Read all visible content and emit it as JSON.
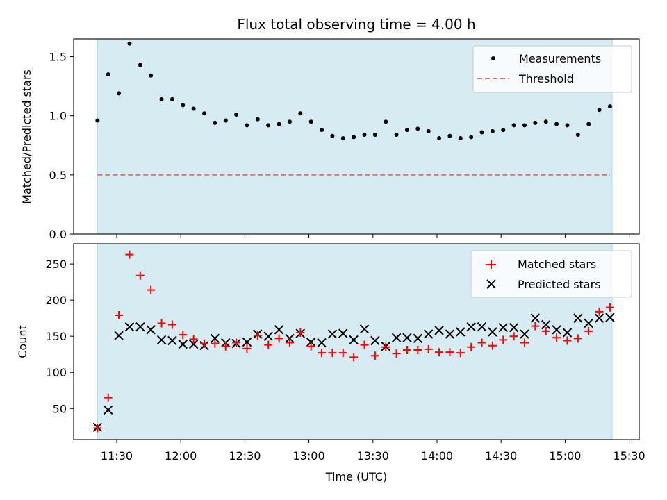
{
  "chart_data": [
    {
      "type": "scatter",
      "title": "Flux total observing time = 4.00 h",
      "xlabel": "",
      "ylabel": "Matched/Predicted stars",
      "ylim": [
        0,
        1.65
      ],
      "yticks": [
        "0.0",
        "0.5",
        "1.0",
        "1.5"
      ],
      "shaded_span": [
        "11:21",
        "15:22"
      ],
      "grid": false,
      "legend": "top-right",
      "series": [
        {
          "name": "Measurements",
          "kind": "dot",
          "color": "#000000",
          "x": [
            "11:21",
            "11:26",
            "11:31",
            "11:36",
            "11:41",
            "11:46",
            "11:51",
            "11:56",
            "12:01",
            "12:06",
            "12:11",
            "12:16",
            "12:21",
            "12:26",
            "12:31",
            "12:36",
            "12:41",
            "12:46",
            "12:51",
            "12:56",
            "13:01",
            "13:06",
            "13:11",
            "13:16",
            "13:21",
            "13:26",
            "13:31",
            "13:36",
            "13:41",
            "13:46",
            "13:51",
            "13:56",
            "14:01",
            "14:06",
            "14:11",
            "14:16",
            "14:21",
            "14:26",
            "14:31",
            "14:36",
            "14:41",
            "14:46",
            "14:51",
            "14:56",
            "15:01",
            "15:06",
            "15:11",
            "15:16",
            "15:21"
          ],
          "y": [
            0.96,
            1.35,
            1.19,
            1.61,
            1.43,
            1.34,
            1.14,
            1.14,
            1.09,
            1.06,
            1.02,
            0.94,
            0.96,
            1.01,
            0.92,
            0.97,
            0.92,
            0.93,
            0.95,
            1.02,
            0.95,
            0.88,
            0.83,
            0.81,
            0.82,
            0.84,
            0.84,
            0.95,
            0.84,
            0.88,
            0.89,
            0.87,
            0.81,
            0.83,
            0.81,
            0.82,
            0.86,
            0.87,
            0.88,
            0.92,
            0.92,
            0.94,
            0.95,
            0.93,
            0.92,
            0.84,
            0.93,
            1.05,
            1.08
          ]
        },
        {
          "name": "Threshold",
          "kind": "dashed-line",
          "color": "#f07070",
          "x": [
            "11:21",
            "15:21"
          ],
          "y": [
            0.5,
            0.5
          ]
        }
      ]
    },
    {
      "type": "scatter",
      "title": "",
      "xlabel": "Time (UTC)",
      "ylabel": "Count",
      "ylim": [
        7,
        278
      ],
      "yticks": [
        "50",
        "100",
        "150",
        "200",
        "250"
      ],
      "xticks": [
        "11:30",
        "12:00",
        "12:30",
        "13:00",
        "13:30",
        "14:00",
        "14:30",
        "15:00",
        "15:30"
      ],
      "shaded_span": [
        "11:21",
        "15:22"
      ],
      "grid": false,
      "legend": "top-right",
      "series": [
        {
          "name": "Matched stars",
          "kind": "plus",
          "color": "#ff0000",
          "x": [
            "11:21",
            "11:26",
            "11:31",
            "11:36",
            "11:41",
            "11:46",
            "11:51",
            "11:56",
            "12:01",
            "12:06",
            "12:11",
            "12:16",
            "12:21",
            "12:26",
            "12:31",
            "12:36",
            "12:41",
            "12:46",
            "12:51",
            "12:56",
            "13:01",
            "13:06",
            "13:11",
            "13:16",
            "13:21",
            "13:26",
            "13:31",
            "13:36",
            "13:41",
            "13:46",
            "13:51",
            "13:56",
            "14:01",
            "14:06",
            "14:11",
            "14:16",
            "14:21",
            "14:26",
            "14:31",
            "14:36",
            "14:41",
            "14:46",
            "14:51",
            "14:56",
            "15:01",
            "15:06",
            "15:11",
            "15:16",
            "15:21"
          ],
          "y": [
            23,
            65,
            179,
            263,
            234,
            214,
            168,
            166,
            152,
            146,
            140,
            140,
            136,
            141,
            133,
            151,
            138,
            147,
            141,
            155,
            136,
            127,
            127,
            127,
            121,
            138,
            123,
            135,
            126,
            131,
            131,
            132,
            128,
            128,
            127,
            135,
            141,
            137,
            145,
            150,
            141,
            164,
            157,
            148,
            144,
            147,
            157,
            184,
            190
          ]
        },
        {
          "name": "Predicted stars",
          "kind": "x",
          "color": "#000000",
          "x": [
            "11:21",
            "11:26",
            "11:31",
            "11:36",
            "11:41",
            "11:46",
            "11:51",
            "11:56",
            "12:01",
            "12:06",
            "12:11",
            "12:16",
            "12:21",
            "12:26",
            "12:31",
            "12:36",
            "12:41",
            "12:46",
            "12:51",
            "12:56",
            "13:01",
            "13:06",
            "13:11",
            "13:16",
            "13:21",
            "13:26",
            "13:31",
            "13:36",
            "13:41",
            "13:46",
            "13:51",
            "13:56",
            "14:01",
            "14:06",
            "14:11",
            "14:16",
            "14:21",
            "14:26",
            "14:31",
            "14:36",
            "14:41",
            "14:46",
            "14:51",
            "14:56",
            "15:01",
            "15:06",
            "15:11",
            "15:16",
            "15:21"
          ],
          "y": [
            24,
            48,
            151,
            163,
            163,
            159,
            145,
            144,
            139,
            139,
            137,
            147,
            141,
            140,
            142,
            153,
            150,
            159,
            147,
            154,
            142,
            141,
            153,
            154,
            145,
            160,
            144,
            136,
            148,
            148,
            147,
            153,
            158,
            153,
            156,
            163,
            163,
            156,
            162,
            162,
            153,
            175,
            166,
            159,
            155,
            175,
            168,
            175,
            176
          ]
        }
      ]
    }
  ]
}
